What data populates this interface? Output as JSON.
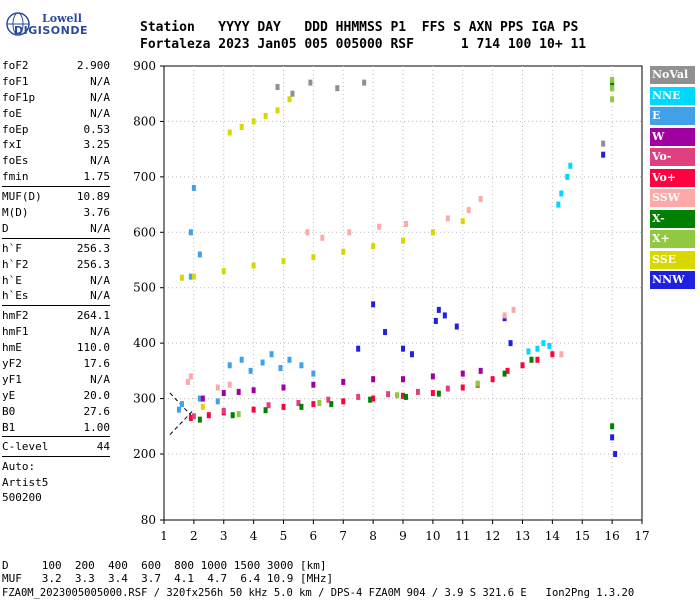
{
  "logo": {
    "line1": "Lowell",
    "line2": "DIGISONDE"
  },
  "header": {
    "labels": "Station   YYYY DAY   DDD HHMMSS P1  FFS S AXN PPS IGA PS",
    "values": "Fortaleza 2023 Jan05 005 005000 RSF      1 714 100 10+ 11"
  },
  "params": {
    "group1": [
      {
        "key": "foF2",
        "value": "2.900"
      },
      {
        "key": "foF1",
        "value": "N/A"
      },
      {
        "key": "foF1p",
        "value": "N/A"
      },
      {
        "key": "foE",
        "value": "N/A"
      },
      {
        "key": "foEp",
        "value": "0.53"
      },
      {
        "key": "fxI",
        "value": "3.25"
      },
      {
        "key": "foEs",
        "value": "N/A"
      },
      {
        "key": "fmin",
        "value": "1.75"
      }
    ],
    "group2": [
      {
        "key": "MUF(D)",
        "value": "10.89"
      },
      {
        "key": "M(D)",
        "value": "3.76"
      },
      {
        "key": "D",
        "value": "N/A"
      }
    ],
    "group3": [
      {
        "key": "h`F",
        "value": "256.3"
      },
      {
        "key": "h`F2",
        "value": "256.3"
      },
      {
        "key": "h`E",
        "value": "N/A"
      },
      {
        "key": "h`Es",
        "value": "N/A"
      }
    ],
    "group4": [
      {
        "key": "hmF2",
        "value": "264.1"
      },
      {
        "key": "hmF1",
        "value": "N/A"
      },
      {
        "key": "hmE",
        "value": "110.0"
      },
      {
        "key": "yF2",
        "value": "17.6"
      },
      {
        "key": "yF1",
        "value": "N/A"
      },
      {
        "key": "yE",
        "value": "20.0"
      },
      {
        "key": "B0",
        "value": "27.6"
      },
      {
        "key": "B1",
        "value": "1.00"
      }
    ],
    "clevel": {
      "key": "C-level",
      "value": "44"
    },
    "auto": [
      "Auto:",
      "Artist5",
      "500200"
    ]
  },
  "legend": [
    {
      "label": "NoVal",
      "color": "#909090"
    },
    {
      "label": "NNE",
      "color": "#00d8ff"
    },
    {
      "label": "E",
      "color": "#40a0e8"
    },
    {
      "label": "W",
      "color": "#a000a0"
    },
    {
      "label": "Vo-",
      "color": "#e04080"
    },
    {
      "label": "Vo+",
      "color": "#ff0040"
    },
    {
      "label": "SSW",
      "color": "#ffa8a8"
    },
    {
      "label": "X-",
      "color": "#008000"
    },
    {
      "label": "X+",
      "color": "#90c840"
    },
    {
      "label": "SSE",
      "color": "#d8d800"
    },
    {
      "label": "NNW",
      "color": "#2020e0"
    }
  ],
  "chart_data": {
    "type": "scatter",
    "x_ticks": [
      "1",
      "2",
      "3",
      "4",
      "5",
      "6",
      "7",
      "8",
      "9",
      "10",
      "11",
      "12",
      "13",
      "14",
      "15",
      "16",
      "17"
    ],
    "y_ticks": [
      "80",
      "200",
      "300",
      "400",
      "500",
      "600",
      "700",
      "800",
      "900"
    ],
    "xlim": [
      1,
      17
    ],
    "ylim": [
      80,
      900
    ],
    "grid": true,
    "traces": [
      {
        "name": "NNE",
        "color": "#00d8ff",
        "points": [
          [
            13.2,
            385
          ],
          [
            13.5,
            390
          ],
          [
            13.7,
            400
          ],
          [
            13.9,
            395
          ],
          [
            14.2,
            650
          ],
          [
            14.3,
            670
          ],
          [
            14.5,
            700
          ],
          [
            14.6,
            720
          ]
        ]
      },
      {
        "name": "E",
        "color": "#40a0e8",
        "points": [
          [
            1.9,
            520
          ],
          [
            1.9,
            600
          ],
          [
            2.0,
            680
          ],
          [
            2.2,
            560
          ],
          [
            3.2,
            360
          ],
          [
            3.6,
            370
          ],
          [
            3.9,
            350
          ],
          [
            4.3,
            365
          ],
          [
            4.6,
            380
          ],
          [
            4.9,
            355
          ],
          [
            5.2,
            370
          ],
          [
            5.6,
            360
          ],
          [
            6.0,
            345
          ],
          [
            1.5,
            280
          ],
          [
            1.6,
            290
          ],
          [
            2.2,
            300
          ],
          [
            2.8,
            295
          ]
        ]
      },
      {
        "name": "W",
        "color": "#a000a0",
        "points": [
          [
            3.0,
            310
          ],
          [
            4.0,
            315
          ],
          [
            5.0,
            320
          ],
          [
            6.0,
            325
          ],
          [
            7.0,
            330
          ],
          [
            8.0,
            335
          ],
          [
            9.0,
            335
          ],
          [
            10.0,
            340
          ],
          [
            11.0,
            345
          ],
          [
            11.6,
            350
          ],
          [
            2.3,
            300
          ],
          [
            3.5,
            312
          ]
        ]
      },
      {
        "name": "Vo+",
        "color": "#ff0040",
        "points": [
          [
            1.9,
            265
          ],
          [
            2.5,
            270
          ],
          [
            3.0,
            275
          ],
          [
            4.0,
            280
          ],
          [
            5.0,
            285
          ],
          [
            6.0,
            290
          ],
          [
            7.0,
            295
          ],
          [
            8.0,
            300
          ],
          [
            9.0,
            305
          ],
          [
            10.0,
            310
          ],
          [
            11.0,
            320
          ],
          [
            11.5,
            325
          ],
          [
            12.0,
            335
          ],
          [
            12.5,
            350
          ],
          [
            13.0,
            360
          ],
          [
            13.5,
            370
          ],
          [
            14.0,
            380
          ]
        ]
      },
      {
        "name": "Vo-",
        "color": "#e04080",
        "points": [
          [
            2.0,
            268
          ],
          [
            3.0,
            278
          ],
          [
            4.5,
            288
          ],
          [
            5.5,
            292
          ],
          [
            6.5,
            298
          ],
          [
            7.5,
            303
          ],
          [
            8.5,
            308
          ],
          [
            9.5,
            312
          ],
          [
            10.5,
            318
          ]
        ]
      },
      {
        "name": "X-",
        "color": "#008000",
        "points": [
          [
            2.2,
            262
          ],
          [
            3.3,
            270
          ],
          [
            4.4,
            279
          ],
          [
            5.6,
            285
          ],
          [
            6.6,
            290
          ],
          [
            7.9,
            298
          ],
          [
            9.1,
            303
          ],
          [
            10.2,
            309
          ],
          [
            12.4,
            345
          ],
          [
            13.3,
            370
          ],
          [
            16.0,
            250
          ],
          [
            16.0,
            860
          ],
          [
            16.0,
            870
          ]
        ]
      },
      {
        "name": "SSE",
        "color": "#d8d800",
        "points": [
          [
            1.6,
            518
          ],
          [
            2.0,
            520
          ],
          [
            3.0,
            530
          ],
          [
            4.0,
            540
          ],
          [
            5.0,
            548
          ],
          [
            6.0,
            555
          ],
          [
            7.0,
            565
          ],
          [
            8.0,
            575
          ],
          [
            9.0,
            585
          ],
          [
            10.0,
            600
          ],
          [
            11.0,
            620
          ],
          [
            3.2,
            780
          ],
          [
            3.6,
            790
          ],
          [
            4.0,
            800
          ],
          [
            4.4,
            810
          ],
          [
            4.8,
            820
          ],
          [
            5.2,
            840
          ],
          [
            2.3,
            285
          ]
        ]
      },
      {
        "name": "NNW",
        "color": "#2020e0",
        "points": [
          [
            7.5,
            390
          ],
          [
            8.0,
            470
          ],
          [
            8.4,
            420
          ],
          [
            9.0,
            390
          ],
          [
            9.3,
            380
          ],
          [
            10.1,
            440
          ],
          [
            10.2,
            460
          ],
          [
            10.4,
            450
          ],
          [
            10.8,
            430
          ],
          [
            12.4,
            445
          ],
          [
            12.6,
            400
          ],
          [
            15.7,
            740
          ],
          [
            16.0,
            230
          ],
          [
            16.1,
            200
          ]
        ]
      },
      {
        "name": "SSW",
        "color": "#ffa8a8",
        "points": [
          [
            1.8,
            330
          ],
          [
            1.9,
            340
          ],
          [
            2.8,
            320
          ],
          [
            3.2,
            325
          ],
          [
            5.8,
            600
          ],
          [
            6.3,
            590
          ],
          [
            7.2,
            600
          ],
          [
            8.2,
            610
          ],
          [
            9.1,
            615
          ],
          [
            10.5,
            625
          ],
          [
            11.2,
            640
          ],
          [
            11.6,
            660
          ],
          [
            12.4,
            450
          ],
          [
            12.7,
            460
          ],
          [
            14.3,
            380
          ]
        ]
      },
      {
        "name": "X+",
        "color": "#90c840",
        "points": [
          [
            3.5,
            272
          ],
          [
            6.2,
            292
          ],
          [
            8.8,
            306
          ],
          [
            11.5,
            327
          ],
          [
            16.0,
            840
          ],
          [
            16.0,
            860
          ],
          [
            16.0,
            875
          ]
        ]
      },
      {
        "name": "NoVal",
        "color": "#909090",
        "points": [
          [
            4.8,
            862
          ],
          [
            5.3,
            850
          ],
          [
            5.9,
            870
          ],
          [
            6.8,
            860
          ],
          [
            7.7,
            870
          ],
          [
            15.7,
            760
          ]
        ]
      }
    ]
  },
  "footer": {
    "d_row": "D     100  200  400  600  800 1000 1500 3000 [km]",
    "muf_row": "MUF   3.2  3.3  3.4  3.7  4.1  4.7  6.4 10.9 [MHz]",
    "file_row": "FZA0M_2023005005000.RSF / 320fx256h 50 kHz 5.0 km / DPS-4 FZA0M 904 / 3.9 S 321.6 E   Ion2Png 1.3.20"
  }
}
